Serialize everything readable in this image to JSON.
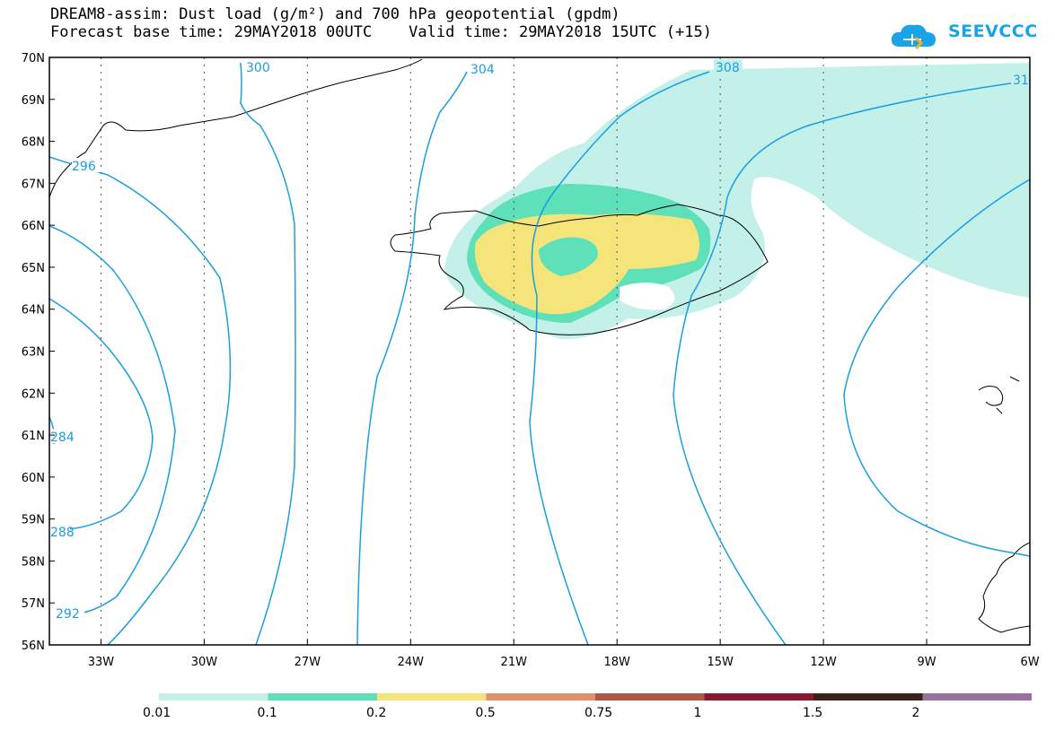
{
  "title_line1": "DREAM8-assim: Dust load (g/m²) and 700 hPa geopotential (gpdm)",
  "title_line2": "Forecast base time: 29MAY2018 00UTC    Valid time: 29MAY2018 15UTC (+15)",
  "logo_text": "SEEVCCC",
  "map": {
    "lon_range": [
      -34.5,
      -6
    ],
    "lat_range": [
      56,
      70
    ],
    "lat_labels": [
      "70N",
      "69N",
      "68N",
      "67N",
      "66N",
      "65N",
      "64N",
      "63N",
      "62N",
      "61N",
      "60N",
      "59N",
      "58N",
      "57N",
      "56N"
    ],
    "lon_labels": [
      "33W",
      "30W",
      "27W",
      "24W",
      "21W",
      "18W",
      "15W",
      "12W",
      "9W",
      "6W"
    ],
    "contour_color": "#1a9ee0",
    "contour_labels": [
      "300",
      "304",
      "308",
      "31",
      "296",
      "284",
      "288",
      "292"
    ]
  },
  "colorbar": {
    "labels": [
      "0.01",
      "0.1",
      "0.2",
      "0.5",
      "0.75",
      "1",
      "1.5",
      "2"
    ],
    "colors": [
      "#c4f0ea",
      "#5ee0b8",
      "#f5e47a",
      "#e0906a",
      "#b05848",
      "#8a1830",
      "#3a2418",
      "#9a70a0"
    ]
  }
}
